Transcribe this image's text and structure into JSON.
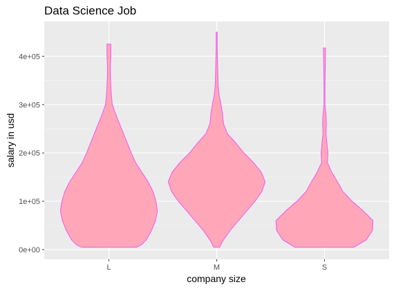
{
  "chart_data": {
    "type": "violin",
    "title": "Data Science Job",
    "xlabel": "company size",
    "ylabel": "salary in usd",
    "categories": [
      "L",
      "M",
      "S"
    ],
    "y_ticks": [
      0,
      100000,
      200000,
      300000,
      400000
    ],
    "y_tick_labels": [
      "0e+00",
      "1e+05",
      "2e+05",
      "3e+05",
      "4e+05"
    ],
    "ylim": [
      -20000,
      472000
    ],
    "grid": true,
    "legend": "none",
    "colors": {
      "fill": "#ffa6b9",
      "outline": "#ee62ee",
      "panel": "#ebebeb",
      "grid_major": "#ffffff",
      "grid_minor": "#f5f5f5",
      "tick_text": "#4d4d4d",
      "tick_mark": "#333333"
    },
    "violins": [
      {
        "category": "L",
        "min": 5000,
        "max": 425000,
        "profile": [
          [
            5000,
            0.57
          ],
          [
            10000,
            0.67
          ],
          [
            20000,
            0.77
          ],
          [
            40000,
            0.88
          ],
          [
            60000,
            0.96
          ],
          [
            80000,
            1.0
          ],
          [
            100000,
            0.97
          ],
          [
            120000,
            0.91
          ],
          [
            140000,
            0.81
          ],
          [
            160000,
            0.68
          ],
          [
            180000,
            0.55
          ],
          [
            200000,
            0.46
          ],
          [
            220000,
            0.38
          ],
          [
            240000,
            0.3
          ],
          [
            260000,
            0.22
          ],
          [
            280000,
            0.14
          ],
          [
            300000,
            0.07
          ],
          [
            320000,
            0.05
          ],
          [
            360000,
            0.03
          ],
          [
            380000,
            0.03
          ],
          [
            400000,
            0.04
          ],
          [
            410000,
            0.04
          ],
          [
            425000,
            0.04
          ]
        ]
      },
      {
        "category": "M",
        "min": 5000,
        "max": 450000,
        "profile": [
          [
            5000,
            0.06
          ],
          [
            20000,
            0.14
          ],
          [
            40000,
            0.28
          ],
          [
            60000,
            0.45
          ],
          [
            80000,
            0.62
          ],
          [
            100000,
            0.79
          ],
          [
            120000,
            0.93
          ],
          [
            140000,
            1.0
          ],
          [
            160000,
            0.92
          ],
          [
            180000,
            0.76
          ],
          [
            200000,
            0.56
          ],
          [
            220000,
            0.4
          ],
          [
            240000,
            0.22
          ],
          [
            260000,
            0.14
          ],
          [
            280000,
            0.12
          ],
          [
            300000,
            0.09
          ],
          [
            320000,
            0.05
          ],
          [
            340000,
            0.03
          ],
          [
            380000,
            0.02
          ],
          [
            420000,
            0.01
          ],
          [
            450000,
            0.01
          ]
        ]
      },
      {
        "category": "S",
        "min": 5000,
        "max": 417000,
        "profile": [
          [
            5000,
            0.61
          ],
          [
            20000,
            0.86
          ],
          [
            40000,
            0.99
          ],
          [
            60000,
            1.0
          ],
          [
            80000,
            0.8
          ],
          [
            100000,
            0.57
          ],
          [
            120000,
            0.38
          ],
          [
            140000,
            0.27
          ],
          [
            160000,
            0.15
          ],
          [
            180000,
            0.06
          ],
          [
            200000,
            0.07
          ],
          [
            220000,
            0.05
          ],
          [
            240000,
            0.03
          ],
          [
            260000,
            0.04
          ],
          [
            280000,
            0.03
          ],
          [
            300000,
            0.01
          ],
          [
            340000,
            0.01
          ],
          [
            400000,
            0.02
          ],
          [
            417000,
            0.02
          ]
        ]
      }
    ]
  }
}
